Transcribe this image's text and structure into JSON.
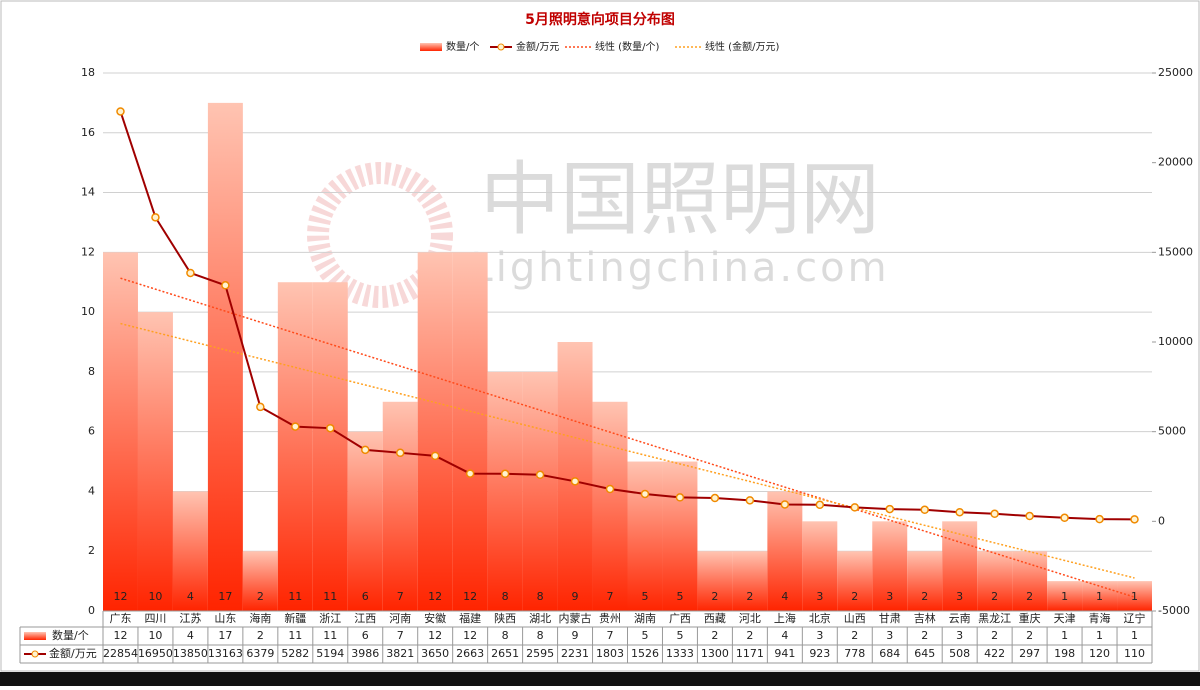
{
  "chart_data": {
    "type": "bar-line",
    "title": "5月照明意向项目分布图",
    "watermark": [
      "中国照明网",
      "Lightingchina.com"
    ],
    "categories": [
      "广东",
      "四川",
      "江苏",
      "山东",
      "海南",
      "新疆",
      "浙江",
      "江西",
      "河南",
      "安徽",
      "福建",
      "陕西",
      "湖北",
      "内蒙古",
      "贵州",
      "湖南",
      "广西",
      "西藏",
      "河北",
      "上海",
      "北京",
      "山西",
      "甘肃",
      "吉林",
      "云南",
      "黑龙江",
      "重庆",
      "天津",
      "青海",
      "辽宁"
    ],
    "series": [
      {
        "name": "数量/个",
        "color": "#ff2a00",
        "values": [
          12,
          10,
          4,
          17,
          2,
          11,
          11,
          6,
          7,
          12,
          12,
          8,
          8,
          9,
          7,
          5,
          5,
          2,
          2,
          4,
          3,
          2,
          3,
          2,
          3,
          2,
          2,
          1,
          1,
          1
        ]
      },
      {
        "name": "金额/万元",
        "color": "#a00000",
        "axis": "y2",
        "values": [
          22854,
          16950,
          13850,
          13163,
          6379,
          5282,
          5194,
          3986,
          3821,
          3650,
          2663,
          2651,
          2595,
          2231,
          1803,
          1526,
          1333,
          1300,
          1171,
          941,
          923,
          778,
          684,
          645,
          508,
          422,
          297,
          198,
          120,
          110
        ]
      }
    ],
    "trendlines": [
      {
        "name": "线性 (数量/个)",
        "color": "#ff4a1a"
      },
      {
        "name": "线性 (金额/万元)",
        "color": "#ffa020"
      }
    ],
    "ylim": [
      0,
      18
    ],
    "yticks": [
      0,
      2,
      4,
      6,
      8,
      10,
      12,
      14,
      16,
      18
    ],
    "y2lim": [
      -5000,
      25000
    ],
    "y2ticks": [
      -5000,
      0,
      5000,
      10000,
      15000,
      20000,
      25000
    ],
    "grid": true
  }
}
